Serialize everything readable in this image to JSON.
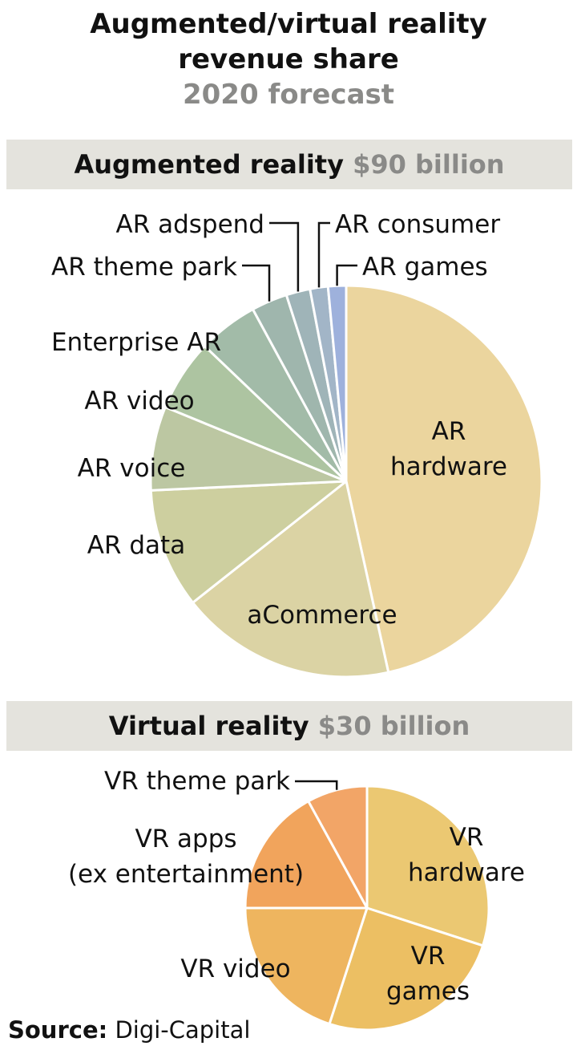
{
  "header": {
    "title_line1": "Augmented/virtual reality",
    "title_line2": "revenue share",
    "subtitle": "2020 forecast"
  },
  "source": {
    "label": "Source:",
    "value": "Digi-Capital"
  },
  "chart_data": [
    {
      "type": "pie",
      "section_label": "Augmented reality",
      "total": "$90 billion",
      "slices": [
        {
          "label": "AR hardware",
          "value": 47,
          "color": "#ebd59e"
        },
        {
          "label": "aCommerce",
          "value": 18,
          "color": "#dbd3a4"
        },
        {
          "label": "AR data",
          "value": 10,
          "color": "#cdcf9f"
        },
        {
          "label": "AR voice",
          "value": 7,
          "color": "#bcc7a2"
        },
        {
          "label": "AR video",
          "value": 6,
          "color": "#adc4a1"
        },
        {
          "label": "Enterprise AR",
          "value": 5,
          "color": "#a2bba8"
        },
        {
          "label": "AR theme park",
          "value": 3,
          "color": "#9fb6ad"
        },
        {
          "label": "AR adspend",
          "value": 2,
          "color": "#9fb4b8"
        },
        {
          "label": "AR consumer",
          "value": 1.5,
          "color": "#a2b5c7"
        },
        {
          "label": "AR games",
          "value": 1.5,
          "color": "#9eb1dc"
        }
      ]
    },
    {
      "type": "pie",
      "section_label": "Virtual reality",
      "total": "$30 billion",
      "slices": [
        {
          "label": "VR hardware",
          "value": 30,
          "color": "#ebc872"
        },
        {
          "label": "VR games",
          "value": 25,
          "color": "#ecbf63"
        },
        {
          "label": "VR video",
          "value": 20,
          "color": "#eeb55f"
        },
        {
          "label": "VR apps (ex entertainment)",
          "value": 17,
          "color": "#f1a45c"
        },
        {
          "label": "VR theme park",
          "value": 8,
          "color": "#f2a567"
        }
      ]
    }
  ]
}
